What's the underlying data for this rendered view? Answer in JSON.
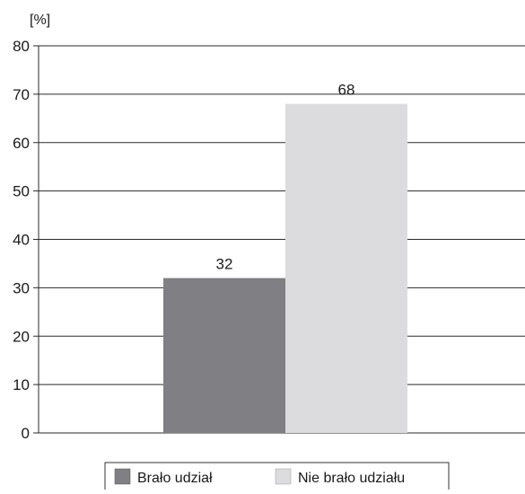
{
  "chart_data": {
    "type": "bar",
    "unit_label": "[%]",
    "ylim": [
      0,
      80
    ],
    "yticks": [
      0,
      10,
      20,
      30,
      40,
      50,
      60,
      70,
      80
    ],
    "grid": true,
    "legend_position": "bottom",
    "series": [
      {
        "name": "Brało udział",
        "value": 32,
        "value_label": "32",
        "color": "#808084"
      },
      {
        "name": "Nie brało udziału",
        "value": 68,
        "value_label": "68",
        "color": "#dcdcde"
      }
    ]
  }
}
